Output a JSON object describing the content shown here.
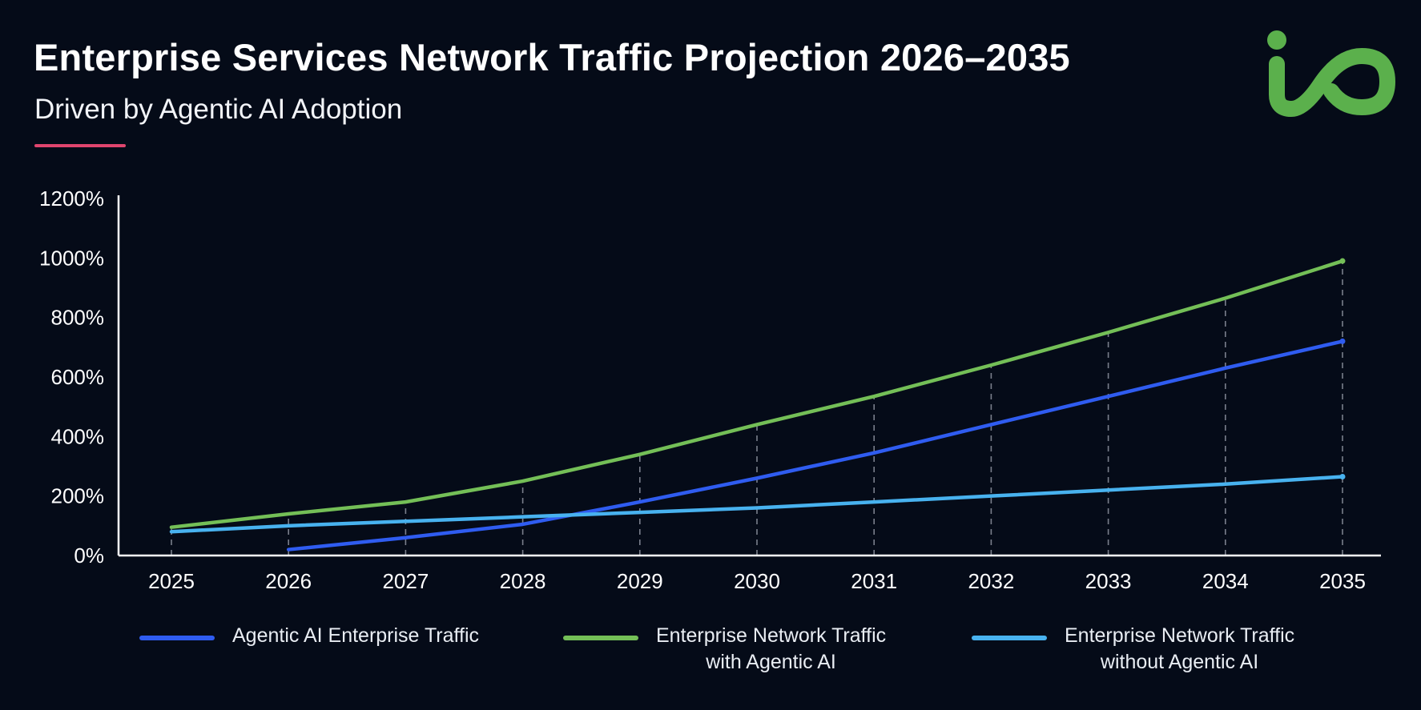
{
  "header": {
    "title": "Enterprise Services Network Traffic Projection 2026–2035",
    "subtitle": "Driven by Agentic AI Adoption"
  },
  "logo": {
    "icon": "io-logo-icon",
    "color": "#5bb04c"
  },
  "colors": {
    "background": "#050b18",
    "accent_rule": "#e0456e",
    "axis": "#ffffff",
    "gridline": "#7a7f8c"
  },
  "legend": [
    {
      "label": "Agentic AI Enterprise Traffic",
      "color": "#2f5cf0"
    },
    {
      "label": "Enterprise Network Traffic\nwith Agentic AI",
      "color": "#74bf57"
    },
    {
      "label": "Enterprise Network Traffic\nwithout Agentic AI",
      "color": "#48b2ef"
    }
  ],
  "chart_data": {
    "type": "line",
    "title": "",
    "xlabel": "",
    "ylabel": "",
    "x": [
      "2025",
      "2026",
      "2027",
      "2028",
      "2029",
      "2030",
      "2031",
      "2032",
      "2033",
      "2034",
      "2035"
    ],
    "yticks": [
      "0%",
      "200%",
      "400%",
      "600%",
      "800%",
      "1000%",
      "1200%"
    ],
    "ylim": [
      0,
      1200
    ],
    "grid": "vertical dashed",
    "legend_position": "bottom",
    "series": [
      {
        "name": "Agentic AI Enterprise Traffic",
        "color": "#2f5cf0",
        "values": [
          null,
          20,
          60,
          105,
          180,
          260,
          345,
          440,
          535,
          630,
          720
        ]
      },
      {
        "name": "Enterprise Network Traffic with Agentic AI",
        "color": "#74bf57",
        "values": [
          95,
          140,
          180,
          250,
          340,
          440,
          535,
          640,
          750,
          865,
          990
        ]
      },
      {
        "name": "Enterprise Network Traffic without Agentic AI",
        "color": "#48b2ef",
        "values": [
          80,
          100,
          115,
          130,
          145,
          160,
          180,
          200,
          220,
          240,
          265
        ]
      }
    ]
  }
}
